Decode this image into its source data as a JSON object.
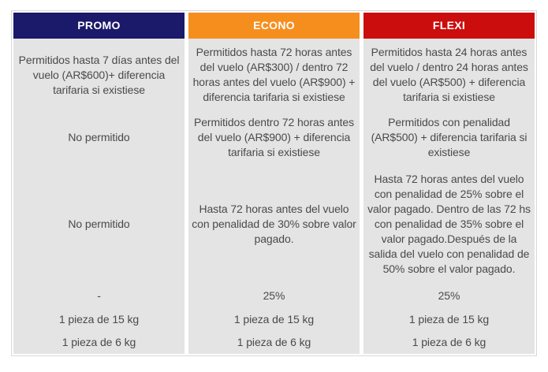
{
  "fare_table": {
    "colors": {
      "cell_background": "#E4E4E4",
      "body_text": "#4A4A4A",
      "header_text": "#FFFFFF",
      "outer_border": "#D9D9D9",
      "promo_header": "#1B1969",
      "econo_header": "#F68E1E",
      "flexi_header": "#CC0D0D"
    },
    "columns": [
      {
        "id": "promo",
        "header": "PROMO",
        "header_color": "#1B1969",
        "cells": [
          "Permitidos hasta 7 días antes del vuelo (AR$600)+ diferencia tarifaria si existiese",
          "No permitido",
          "No permitido",
          "-",
          "1 pieza de 15 kg",
          "1 pieza de 6 kg"
        ]
      },
      {
        "id": "econo",
        "header": "ECONO",
        "header_color": "#F68E1E",
        "cells": [
          "Permitidos hasta 72 horas antes del vuelo (AR$300) / dentro 72 horas antes del vuelo (AR$900) + diferencia tarifaria si existiese",
          "Permitidos dentro 72 horas antes del vuelo (AR$900) + diferencia tarifaria si existiese",
          "Hasta 72 horas antes del vuelo con penalidad de 30% sobre valor pagado.",
          "25%",
          "1 pieza de 15 kg",
          "1 pieza de 6 kg"
        ]
      },
      {
        "id": "flexi",
        "header": "FLEXI",
        "header_color": "#CC0D0D",
        "cells": [
          "Permitidos hasta 24 horas antes del vuelo / dentro 24 horas antes del vuelo (AR$500) + diferencia tarifaria si existiese",
          "Permitidos con penalidad (AR$500) + diferencia tarifaria si existiese",
          "Hasta 72 horas antes del vuelo con penalidad de 25% sobre el valor pagado. Dentro de las 72 hs con penalidad de 35% sobre el valor pagado.Después de la salida del vuelo con penalidad de 50% sobre el valor pagado.",
          "25%",
          "1 pieza de 15 kg",
          "1 pieza de 6 kg"
        ]
      }
    ]
  }
}
